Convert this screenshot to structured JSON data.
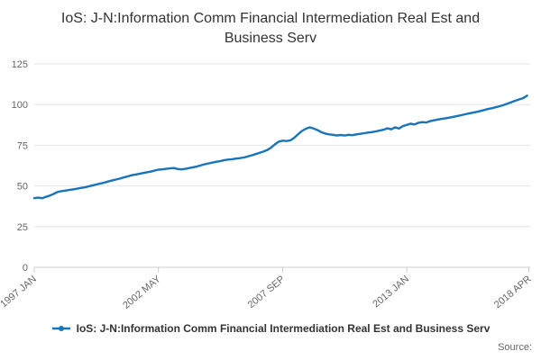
{
  "title": "IoS: J-N:Information Comm Financial Intermediation Real Est and Business Serv",
  "legend": {
    "label": "IoS: J-N:Information Comm Financial Intermediation Real Est and Business Serv"
  },
  "source_label": "Source:",
  "colors": {
    "line": "#1874bc",
    "grid": "#e6e6e6",
    "axis": "#cccccc",
    "tick_text": "#666666",
    "title_text": "#333333"
  },
  "chart_data": {
    "type": "line",
    "title": "IoS: J-N:Information Comm Financial Intermediation Real Est and Business Serv",
    "xlabel": "",
    "ylabel": "",
    "ylim": [
      0,
      125
    ],
    "y_ticks": [
      0,
      25,
      50,
      75,
      100,
      125
    ],
    "x_domain": [
      1997.0,
      2018.3
    ],
    "x_start": 1997.0,
    "x_step": 0.1666667,
    "x_ticks": [
      {
        "label": "1997 JAN",
        "year": 1997.0
      },
      {
        "label": "2002 MAY",
        "year": 2002.333
      },
      {
        "label": "2007 SEP",
        "year": 2007.667
      },
      {
        "label": "2013 JAN",
        "year": 2013.0
      },
      {
        "label": "2018 APR",
        "year": 2018.25
      }
    ],
    "grid": "horizontal",
    "legend_position": "bottom-center",
    "series": [
      {
        "name": "IoS: J-N:Information Comm Financial Intermediation Real Est and Business Serv",
        "color": "#1874bc",
        "values": [
          42.5,
          42.8,
          42.5,
          43.3,
          44.1,
          45.1,
          46.3,
          46.8,
          47.1,
          47.5,
          47.9,
          48.3,
          48.8,
          49.1,
          49.7,
          50.3,
          50.9,
          51.5,
          52.0,
          52.7,
          53.3,
          53.9,
          54.5,
          55.2,
          55.8,
          56.5,
          56.9,
          57.4,
          57.9,
          58.4,
          58.8,
          59.4,
          60.0,
          60.2,
          60.5,
          60.8,
          61.0,
          60.4,
          60.2,
          60.5,
          61.0,
          61.5,
          62.0,
          62.7,
          63.4,
          63.9,
          64.4,
          64.9,
          65.3,
          65.9,
          66.2,
          66.4,
          66.8,
          67.1,
          67.5,
          68.1,
          68.8,
          69.5,
          70.3,
          71.1,
          72.0,
          73.5,
          75.5,
          77.2,
          77.8,
          77.6,
          78.0,
          79.6,
          81.8,
          83.8,
          85.2,
          86.0,
          85.3,
          84.3,
          83.0,
          82.2,
          81.7,
          81.4,
          81.0,
          81.3,
          81.0,
          81.4,
          81.2,
          81.7,
          82.0,
          82.4,
          82.8,
          83.1,
          83.5,
          84.0,
          84.5,
          85.4,
          84.8,
          86.0,
          85.3,
          86.8,
          87.5,
          88.3,
          87.8,
          88.8,
          89.2,
          89.0,
          89.8,
          90.3,
          90.8,
          91.2,
          91.6,
          92.0,
          92.5,
          93.0,
          93.5,
          94.0,
          94.5,
          95.0,
          95.5,
          96.1,
          96.7,
          97.3,
          97.8,
          98.4,
          99.0,
          99.8,
          100.6,
          101.5,
          102.4,
          103.2,
          104.0,
          105.5
        ]
      }
    ]
  }
}
